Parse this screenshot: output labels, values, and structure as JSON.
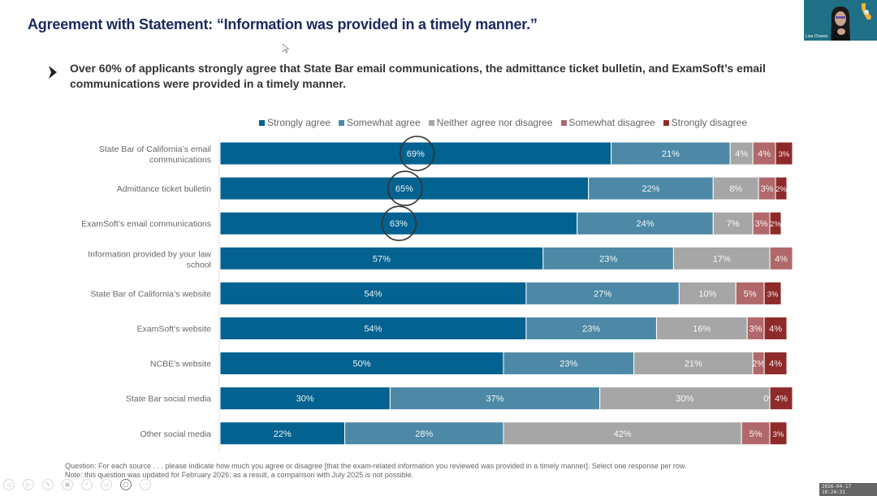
{
  "slide": {
    "title": "Agreement with Statement:  “Information was provided in a timely manner.”",
    "subtitle": "Over 60% of applicants strongly agree that State Bar email communications, the admittance ticket bulletin, and ExamSoft’s email communications were provided in a timely manner.",
    "bullet_icon": "chevron-right-icon",
    "footnote_question": "Question:  For each source . . . please indicate how much you agree or disagree [that the exam-related information you reviewed was provided in a timely manner]. Select one response per row.",
    "footnote_note": "Note: this question was updated for February 2026; as a result, a comparison with July 2025 is not possible."
  },
  "video": {
    "participant_name": "Lisa Chavez"
  },
  "toolbar": {
    "buttons": [
      {
        "icon": "previous-icon",
        "glyph": "◁"
      },
      {
        "icon": "next-icon",
        "glyph": "▷"
      },
      {
        "icon": "pen-icon",
        "glyph": "✎"
      },
      {
        "icon": "slides-icon",
        "glyph": "▣"
      },
      {
        "icon": "zoom-icon",
        "glyph": "⌕"
      },
      {
        "icon": "subtitles-icon",
        "glyph": "▭"
      },
      {
        "icon": "camera-icon",
        "glyph": "▢"
      },
      {
        "icon": "more-icon",
        "glyph": "⋯"
      }
    ]
  },
  "timestamp": "2026-04-17 10:24:31",
  "chart_data": {
    "type": "bar",
    "orientation": "horizontal",
    "stacked": "100%",
    "title": "",
    "xlabel": "",
    "ylabel": "",
    "xlim": [
      0,
      100
    ],
    "legend_position": "top",
    "grid": false,
    "categories": [
      "State Bar of California’s email communications",
      "Admittance ticket bulletin",
      "ExamSoft’s email communications",
      "Information provided by your law school",
      "State Bar of California’s website",
      "ExamSoft’s website",
      "NCBE’s website",
      "State Bar social media",
      "Other social media"
    ],
    "series": [
      {
        "name": "Strongly agree",
        "color": "#03628f",
        "values": [
          69,
          65,
          63,
          57,
          54,
          54,
          50,
          30,
          22
        ]
      },
      {
        "name": "Somewhat agree",
        "color": "#4d89a6",
        "values": [
          21,
          22,
          24,
          23,
          27,
          23,
          23,
          37,
          28
        ]
      },
      {
        "name": "Neither agree nor disagree",
        "color": "#a6a6a6",
        "values": [
          4,
          8,
          7,
          17,
          10,
          16,
          21,
          30,
          42
        ]
      },
      {
        "name": "Somewhat disagree",
        "color": "#b0686b",
        "values": [
          4,
          3,
          3,
          4,
          5,
          3,
          2,
          0,
          5
        ]
      },
      {
        "name": "Strongly disagree",
        "color": "#8e2a2a",
        "values": [
          3,
          2,
          2,
          0,
          3,
          4,
          4,
          4,
          3
        ]
      }
    ],
    "annotations": [
      {
        "type": "circle",
        "category": "State Bar of California’s email communications",
        "label": "69%"
      },
      {
        "type": "circle",
        "category": "Admittance ticket bulletin",
        "label": "65%"
      },
      {
        "type": "circle",
        "category": "ExamSoft’s email communications",
        "label": "63%"
      }
    ]
  }
}
